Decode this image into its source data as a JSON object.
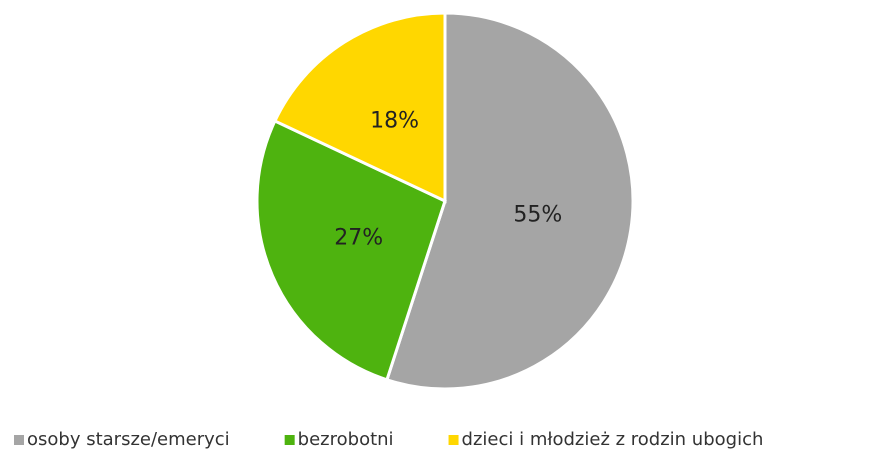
{
  "chart_data": {
    "type": "pie",
    "categories": [
      "osoby starsze/emeryci",
      "bezrobotni",
      "dzieci i młodzież z rodzin ubogich"
    ],
    "values": [
      55,
      27,
      18
    ],
    "value_labels": [
      "55%",
      "27%",
      "18%"
    ],
    "colors": [
      "#a5a5a5",
      "#4eb30f",
      "#ffd700"
    ],
    "legend": "bottom"
  }
}
